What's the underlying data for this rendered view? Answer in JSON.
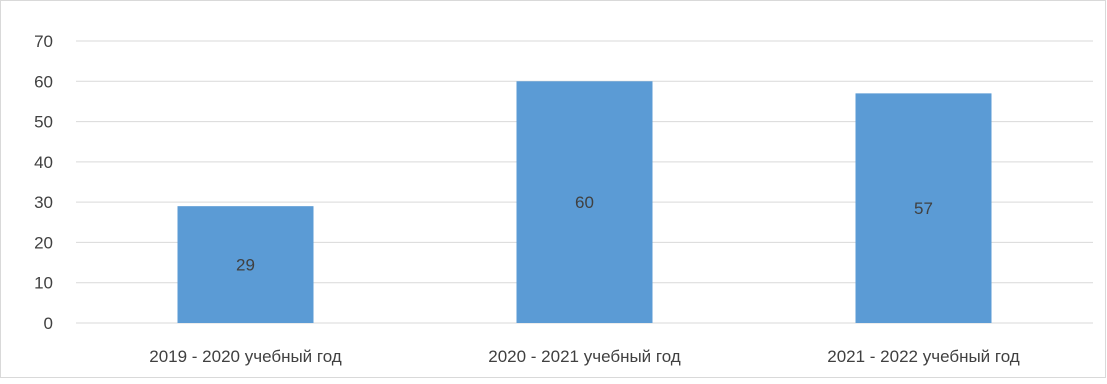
{
  "chart_data": {
    "type": "bar",
    "categories": [
      "2019 - 2020 учебный год",
      "2020 - 2021 учебный год",
      "2021 - 2022 учебный год"
    ],
    "values": [
      29,
      60,
      57
    ],
    "data_labels": [
      "29",
      "60",
      "57"
    ],
    "title": "",
    "xlabel": "",
    "ylabel": "",
    "ylim": [
      0,
      70
    ],
    "yticks": [
      0,
      10,
      20,
      30,
      40,
      50,
      60,
      70
    ],
    "grid": true,
    "legend": "none",
    "bar_color": "#5b9bd5",
    "grid_color": "#d9d9d9",
    "text_color": "#404040"
  }
}
